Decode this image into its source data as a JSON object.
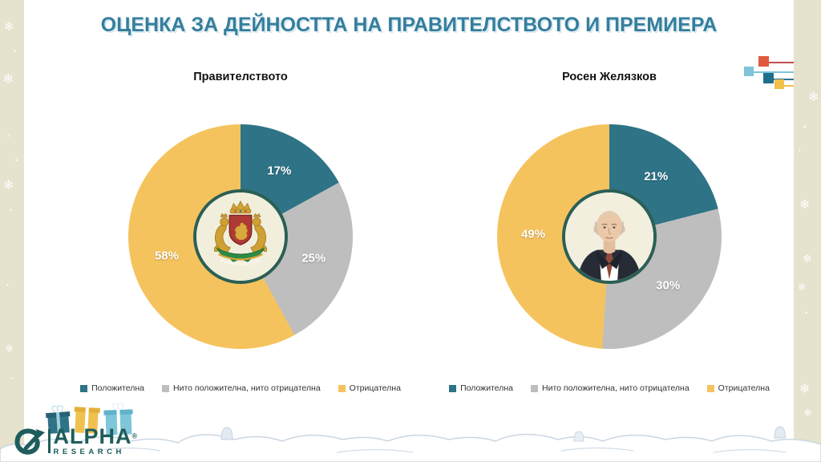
{
  "slide": {
    "title": "ОЦЕНКА ЗА ДЕЙНОСТТА НА ПРАВИТЕЛСТВОТО И ПРЕМИЕРА"
  },
  "colors": {
    "title": "#347E9D",
    "frame": "#E5E2CE",
    "positive": "#2E7386",
    "neutral": "#BEBEBE",
    "negative": "#F5C35E",
    "donut_ring": "#2B5F55"
  },
  "legend": {
    "items": [
      {
        "label": "Положителна",
        "color": "#2E7386"
      },
      {
        "label": "Нито положителна, нито отрицателна",
        "color": "#BEBEBE"
      },
      {
        "label": "Отрицателна",
        "color": "#F5C35E"
      }
    ]
  },
  "chart_data": [
    {
      "type": "pie",
      "title": "Правителството",
      "categories": [
        "Положителна",
        "Нито положителна, нито отрицателна",
        "Отрицателна"
      ],
      "values": [
        17,
        25,
        58
      ],
      "labels": [
        "17%",
        "25%",
        "58%"
      ],
      "colors": [
        "#2E7386",
        "#BEBEBE",
        "#F5C35E"
      ],
      "start_angle_deg": 0,
      "direction": "clockwise",
      "hole_ratio": 0.42,
      "center_image": "bulgaria-coat-of-arms",
      "legend_position": "bottom"
    },
    {
      "type": "pie",
      "title": "Росен Желязков",
      "categories": [
        "Положителна",
        "Нито положителна, нито отрицателна",
        "Отрицателна"
      ],
      "values": [
        21,
        30,
        49
      ],
      "labels": [
        "21%",
        "30%",
        "49%"
      ],
      "colors": [
        "#2E7386",
        "#BEBEBE",
        "#F5C35E"
      ],
      "start_angle_deg": 0,
      "direction": "clockwise",
      "hole_ratio": 0.42,
      "center_image": "rosen-zhelyazkov-portrait",
      "legend_position": "bottom"
    }
  ],
  "logo": {
    "brand": "ALPHA",
    "registered": "®",
    "sub_brand": "RESEARCH"
  },
  "decor": {
    "snowflake": "❄",
    "dot": "•"
  }
}
